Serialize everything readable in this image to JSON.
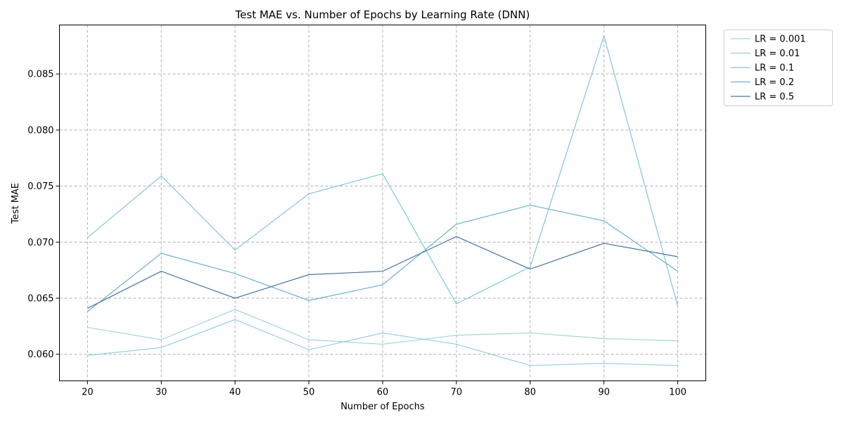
{
  "chart_data": {
    "type": "line",
    "title": "Test MAE vs. Number of Epochs by Learning Rate (DNN)",
    "xlabel": "Number of Epochs",
    "ylabel": "Test MAE",
    "x": [
      20,
      30,
      40,
      50,
      60,
      70,
      80,
      90,
      100
    ],
    "xticks": [
      "20",
      "30",
      "40",
      "50",
      "60",
      "70",
      "80",
      "90",
      "100"
    ],
    "yticks": [
      "0.060",
      "0.065",
      "0.070",
      "0.075",
      "0.080",
      "0.085"
    ],
    "ytick_values": [
      0.06,
      0.065,
      0.07,
      0.075,
      0.08,
      0.085
    ],
    "xlim": [
      16.2,
      103.8
    ],
    "ylim": [
      0.05763,
      0.08937
    ],
    "grid": true,
    "legend_position": "outside-top-right",
    "series": [
      {
        "name": "LR = 0.001",
        "color": "#9fd8dc",
        "values": [
          0.0624,
          0.0613,
          0.064,
          0.0613,
          0.0609,
          0.0617,
          0.0619,
          0.0614,
          0.0612
        ]
      },
      {
        "name": "LR = 0.01",
        "color": "#8fd2dc",
        "values": [
          0.0599,
          0.0606,
          0.0631,
          0.0604,
          0.0619,
          0.0609,
          0.059,
          0.0592,
          0.059
        ]
      },
      {
        "name": "LR = 0.1",
        "color": "#7ec8dc",
        "values": [
          0.0704,
          0.0759,
          0.0693,
          0.0743,
          0.0761,
          0.0645,
          0.0678,
          0.0884,
          0.0643
        ]
      },
      {
        "name": "LR = 0.2",
        "color": "#66b2d2",
        "values": [
          0.0638,
          0.069,
          0.0672,
          0.0648,
          0.0662,
          0.0716,
          0.0733,
          0.0719,
          0.0674
        ]
      },
      {
        "name": "LR = 0.5",
        "color": "#44789e",
        "values": [
          0.0641,
          0.0674,
          0.065,
          0.0671,
          0.0674,
          0.0705,
          0.0676,
          0.0699,
          0.0687
        ]
      }
    ]
  }
}
